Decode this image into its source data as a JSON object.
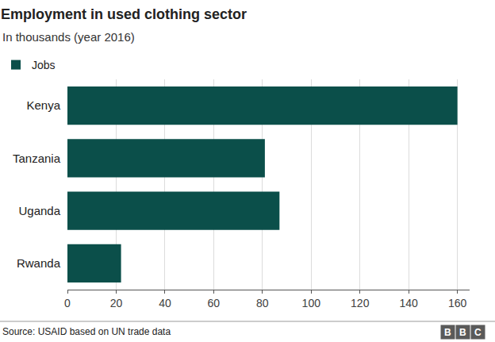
{
  "chart_data": {
    "type": "bar",
    "title": "Employment in used clothing sector",
    "subtitle": "In thousands (year 2016)",
    "source": "Source: USAID based on UN trade data",
    "logo": "BBC",
    "orientation": "horizontal",
    "categories": [
      "Kenya",
      "Tanzania",
      "Uganda",
      "Rwanda"
    ],
    "series": [
      {
        "name": "Jobs",
        "color": "#0b4f4a",
        "values": [
          160,
          81,
          87,
          22
        ]
      }
    ],
    "xlim": [
      0,
      165
    ],
    "xticks": [
      0,
      20,
      40,
      60,
      80,
      100,
      120,
      140,
      160
    ],
    "grid": true,
    "legend": "top-left"
  }
}
